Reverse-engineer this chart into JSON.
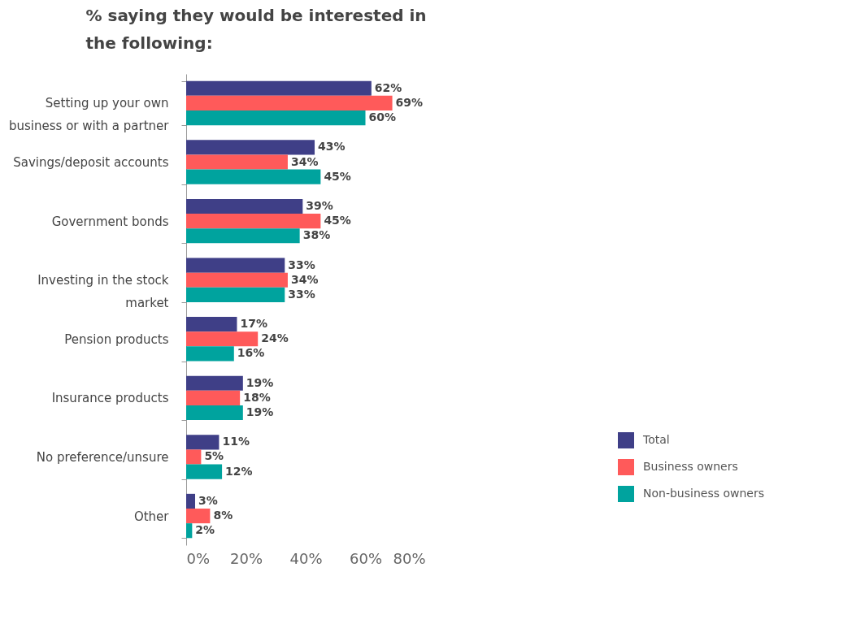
{
  "chart_data": {
    "type": "bar",
    "orientation": "horizontal",
    "title": "% saying they would be interested in the following:",
    "categories": [
      "Setting up your own business or with a partner",
      "Savings/deposit accounts",
      "Government bonds",
      "Investing in the stock market",
      "Pension products",
      "Insurance products",
      "No preference/unsure",
      "Other"
    ],
    "series": [
      {
        "name": "Total",
        "color": "#3f3f87",
        "values": [
          62,
          43,
          39,
          33,
          17,
          19,
          11,
          3
        ],
        "value_labels": [
          "62%",
          "43%",
          "39%",
          "33%",
          "17%",
          "19%",
          "11%",
          "3%"
        ]
      },
      {
        "name": "Business owners",
        "color": "#ff5a5a",
        "values": [
          69,
          34,
          45,
          34,
          24,
          18,
          5,
          8
        ],
        "value_labels": [
          "69%",
          "34%",
          "45%",
          "34%",
          "24%",
          "18%",
          "5%",
          "8%"
        ]
      },
      {
        "name": "Non-business owners",
        "color": "#00a39e",
        "values": [
          60,
          45,
          38,
          33,
          16,
          19,
          12,
          2
        ],
        "value_labels": [
          "60%",
          "45%",
          "38%",
          "33%",
          "16%",
          "19%",
          "12%",
          "2%"
        ]
      }
    ],
    "xlim": [
      0,
      80
    ],
    "xticks": [
      {
        "value": 0,
        "label": "0%"
      },
      {
        "value": 20,
        "label": "20%"
      },
      {
        "value": 40,
        "label": "40%"
      },
      {
        "value": 60,
        "label": "60%"
      },
      {
        "value": 80,
        "label": "80%"
      }
    ],
    "legend": "bottom right"
  }
}
